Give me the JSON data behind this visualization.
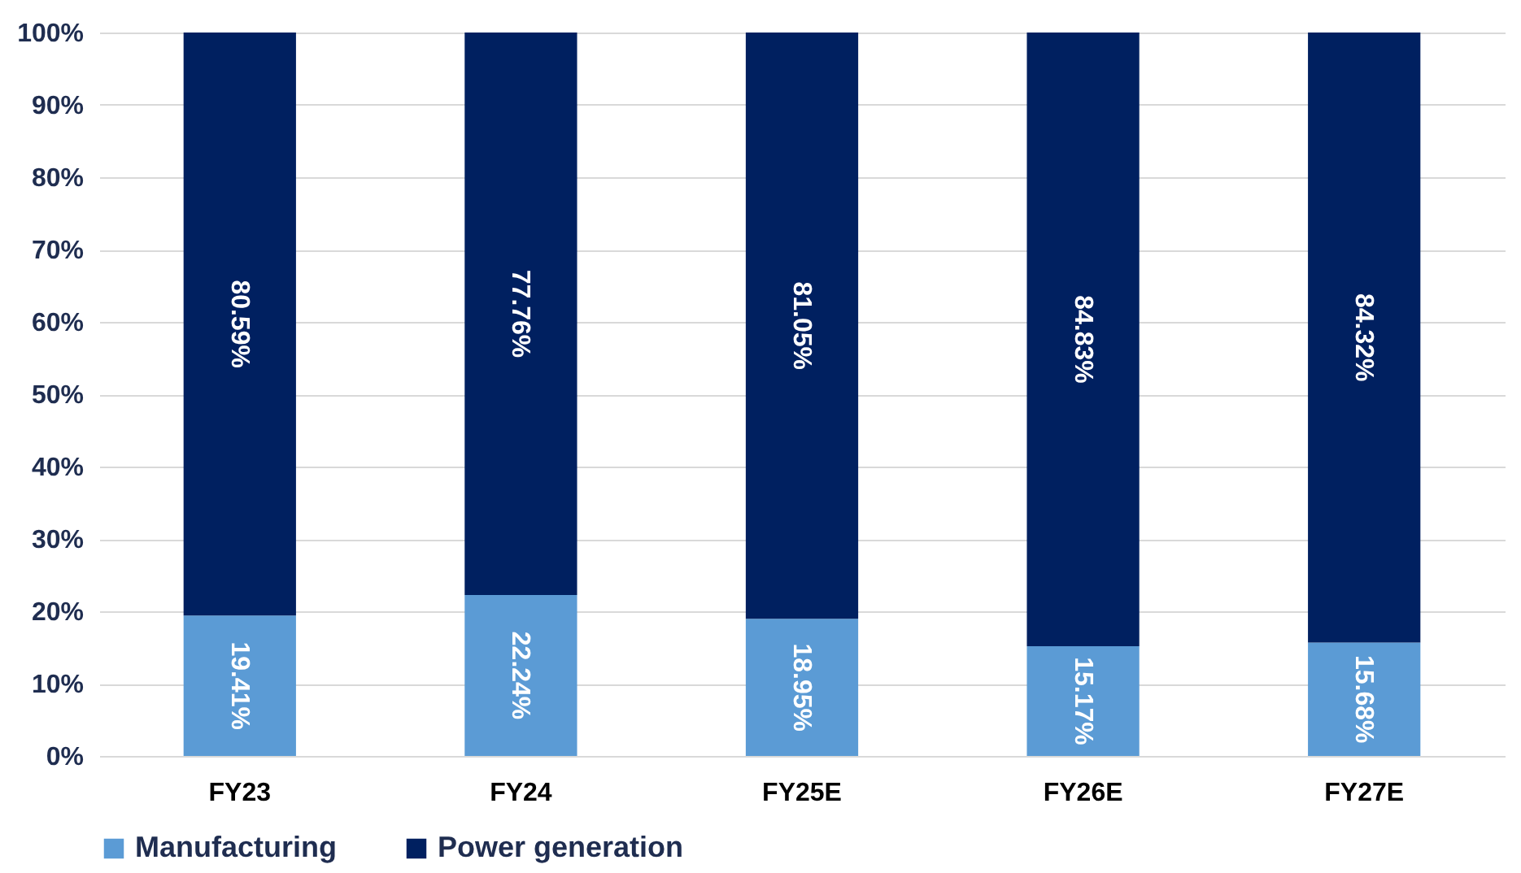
{
  "chart_data": {
    "type": "bar",
    "stacked": true,
    "categories": [
      "FY23",
      "FY24",
      "FY25E",
      "FY26E",
      "FY27E"
    ],
    "series": [
      {
        "name": "Manufacturing",
        "color": "#5b9bd5",
        "values": [
          19.41,
          22.24,
          18.95,
          15.17,
          15.68
        ],
        "value_labels": [
          "19.41%",
          "22.24%",
          "18.95%",
          "15.17%",
          "15.68%"
        ]
      },
      {
        "name": "Power generation",
        "color": "#002060",
        "values": [
          80.59,
          77.76,
          81.05,
          84.83,
          84.32
        ],
        "value_labels": [
          "80.59%",
          "77.76%",
          "81.05%",
          "84.83%",
          "84.32%"
        ]
      }
    ],
    "ylim": [
      0,
      100
    ],
    "yticks": [
      {
        "value": 0,
        "label": "0%"
      },
      {
        "value": 10,
        "label": "10%"
      },
      {
        "value": 20,
        "label": "20%"
      },
      {
        "value": 30,
        "label": "30%"
      },
      {
        "value": 40,
        "label": "40%"
      },
      {
        "value": 50,
        "label": "50%"
      },
      {
        "value": 60,
        "label": "60%"
      },
      {
        "value": 70,
        "label": "70%"
      },
      {
        "value": 80,
        "label": "80%"
      },
      {
        "value": 90,
        "label": "90%"
      },
      {
        "value": 100,
        "label": "100%"
      }
    ],
    "grid": "y",
    "legend": "bottom"
  }
}
